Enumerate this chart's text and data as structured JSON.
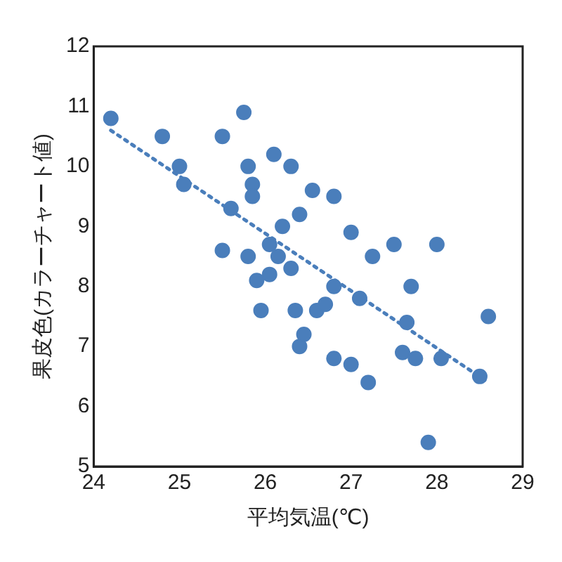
{
  "chart_data": {
    "type": "scatter",
    "xlabel": "平均気温(℃)",
    "ylabel": "果皮色(カラーチャート値)",
    "xlim": [
      24,
      29
    ],
    "xticks": [
      24,
      25,
      26,
      27,
      28,
      29
    ],
    "ylim": [
      5,
      12
    ],
    "yticks": [
      5,
      6,
      7,
      8,
      9,
      10,
      11,
      12
    ],
    "grid": false,
    "legend": false,
    "marker": "circle",
    "series": [
      {
        "color": "#4a7ebb",
        "x": [
          24.2,
          24.8,
          25.0,
          25.05,
          25.5,
          25.5,
          25.6,
          25.75,
          25.8,
          25.85,
          25.85,
          25.8,
          25.9,
          25.95,
          26.05,
          26.05,
          26.1,
          26.15,
          26.2,
          26.3,
          26.3,
          26.4,
          26.35,
          26.4,
          26.45,
          26.6,
          26.55,
          26.7,
          26.8,
          26.8,
          26.8,
          27.0,
          27.0,
          27.1,
          27.2,
          27.25,
          27.5,
          27.6,
          27.65,
          27.7,
          27.75,
          27.9,
          28.0,
          28.05,
          28.5,
          28.6
        ],
        "values": [
          10.8,
          10.5,
          10.0,
          9.7,
          10.5,
          8.6,
          9.3,
          10.9,
          10.0,
          9.7,
          9.5,
          8.5,
          8.1,
          7.6,
          8.2,
          8.7,
          10.2,
          8.5,
          9.0,
          8.3,
          10.0,
          9.2,
          7.6,
          7.0,
          7.2,
          7.6,
          9.6,
          7.7,
          8.0,
          9.5,
          6.8,
          8.9,
          6.7,
          7.8,
          6.4,
          8.5,
          8.7,
          6.9,
          7.4,
          8.0,
          6.8,
          5.4,
          8.7,
          6.8,
          6.5,
          7.5
        ]
      },
      {
        "type": "line",
        "color": "#4a7ebb",
        "line_style": "dotted",
        "marker": "none",
        "x": [
          24.2,
          28.6
        ],
        "values": [
          10.6,
          6.4
        ]
      }
    ]
  }
}
